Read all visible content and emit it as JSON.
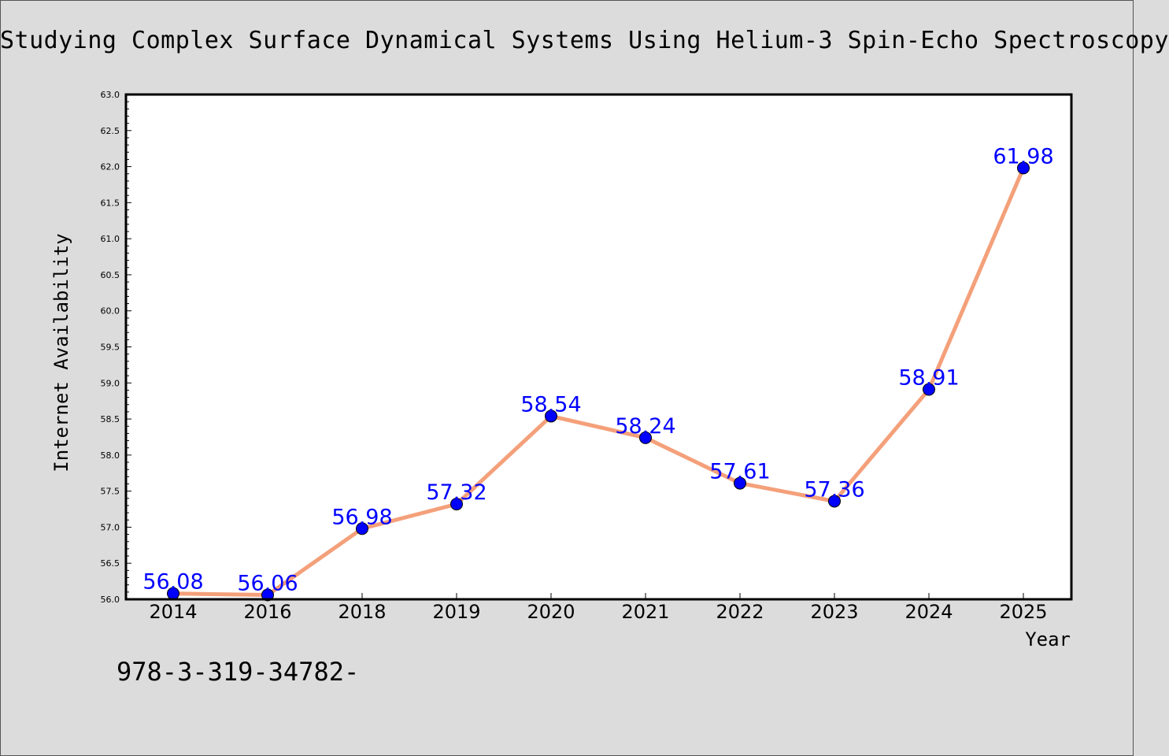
{
  "title": "Studying Complex Surface Dynamical Systems Using Helium-3 Spin-Echo Spectroscopy",
  "footnote": "978-3-319-34782-",
  "colors": {
    "background": "#dcdcdc",
    "line": "#f4a07a",
    "marker": "#0000ff",
    "data_label": "#0000ff"
  },
  "chart_data": {
    "type": "line",
    "title": "Studying Complex Surface Dynamical Systems Using Helium-3 Spin-Echo Spectroscopy",
    "xlabel": "Year",
    "ylabel": "Internet Availability",
    "categories": [
      "2014",
      "2016",
      "2018",
      "2019",
      "2020",
      "2021",
      "2022",
      "2023",
      "2024",
      "2025"
    ],
    "values": [
      56.08,
      56.06,
      56.98,
      57.32,
      58.54,
      58.24,
      57.61,
      57.36,
      58.91,
      61.98
    ],
    "value_labels": [
      "56.08",
      "56.06",
      "56.98",
      "57.32",
      "58.54",
      "58.24",
      "57.61",
      "57.36",
      "58.91",
      "61.98"
    ],
    "ylim": [
      56.0,
      63.0
    ],
    "yticks": [
      "56.0",
      "56.5",
      "57.0",
      "57.5",
      "58.0",
      "58.5",
      "59.0",
      "59.5",
      "60.0",
      "60.5",
      "61.0",
      "61.5",
      "62.0",
      "62.5",
      "63.0"
    ],
    "grid": false,
    "legend": "none"
  }
}
